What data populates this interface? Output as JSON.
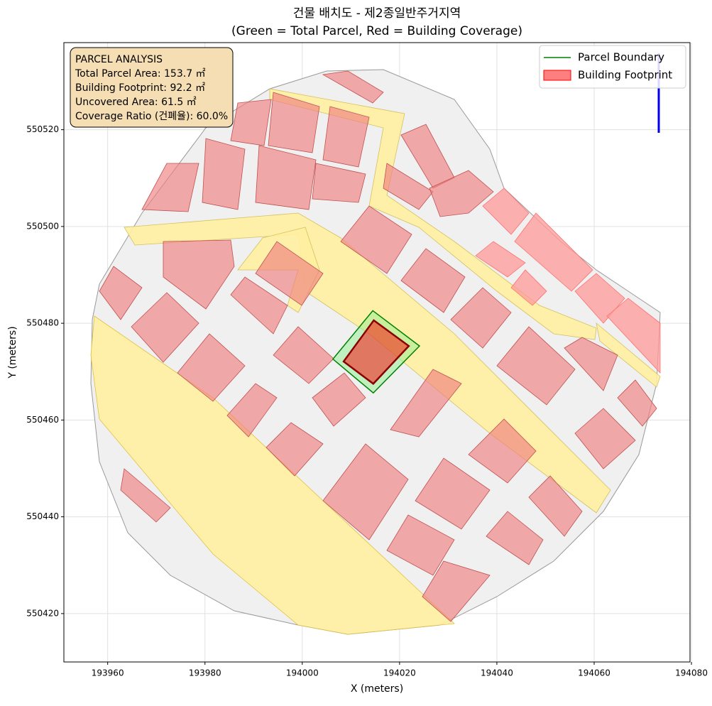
{
  "chart_data": {
    "type": "map",
    "title": "건물 배치도 - 제2종일반주거지역",
    "subtitle": "(Green = Total Parcel, Red = Building Coverage)",
    "x_label": "X (meters)",
    "y_label": "Y (meters)",
    "xlim": [
      193951,
      194079.7
    ],
    "ylim": [
      550410,
      550538
    ],
    "xticks": [
      193960,
      193980,
      194000,
      194020,
      194040,
      194060,
      194080
    ],
    "yticks": [
      550420,
      550440,
      550460,
      550480,
      550500,
      550520
    ],
    "grid": true,
    "legend_position": "upper right",
    "series": [
      {
        "name": "Parcel Boundary",
        "color": "#008000",
        "fill": "#90ee90",
        "x": [
          194014.5,
          194024.1,
          194014.6,
          194006.3
        ],
        "y": [
          550482.6,
          550475.3,
          550465.6,
          550472.6
        ]
      },
      {
        "name": "Building Footprint",
        "color": "#8b0000",
        "fill": "#ff0000",
        "x": [
          194014.7,
          194021.9,
          194014.6,
          194008.5
        ],
        "y": [
          550480.6,
          550475.3,
          550467.5,
          550472.1
        ]
      }
    ],
    "annotation": [
      "PARCEL ANALYSIS",
      "Total Parcel Area: 153.7 ㎡",
      "Building Footprint: 92.2 ㎡",
      "Uncovered Area: 61.5 ㎡",
      "Coverage Ratio (건폐율): 60.0%"
    ]
  }
}
